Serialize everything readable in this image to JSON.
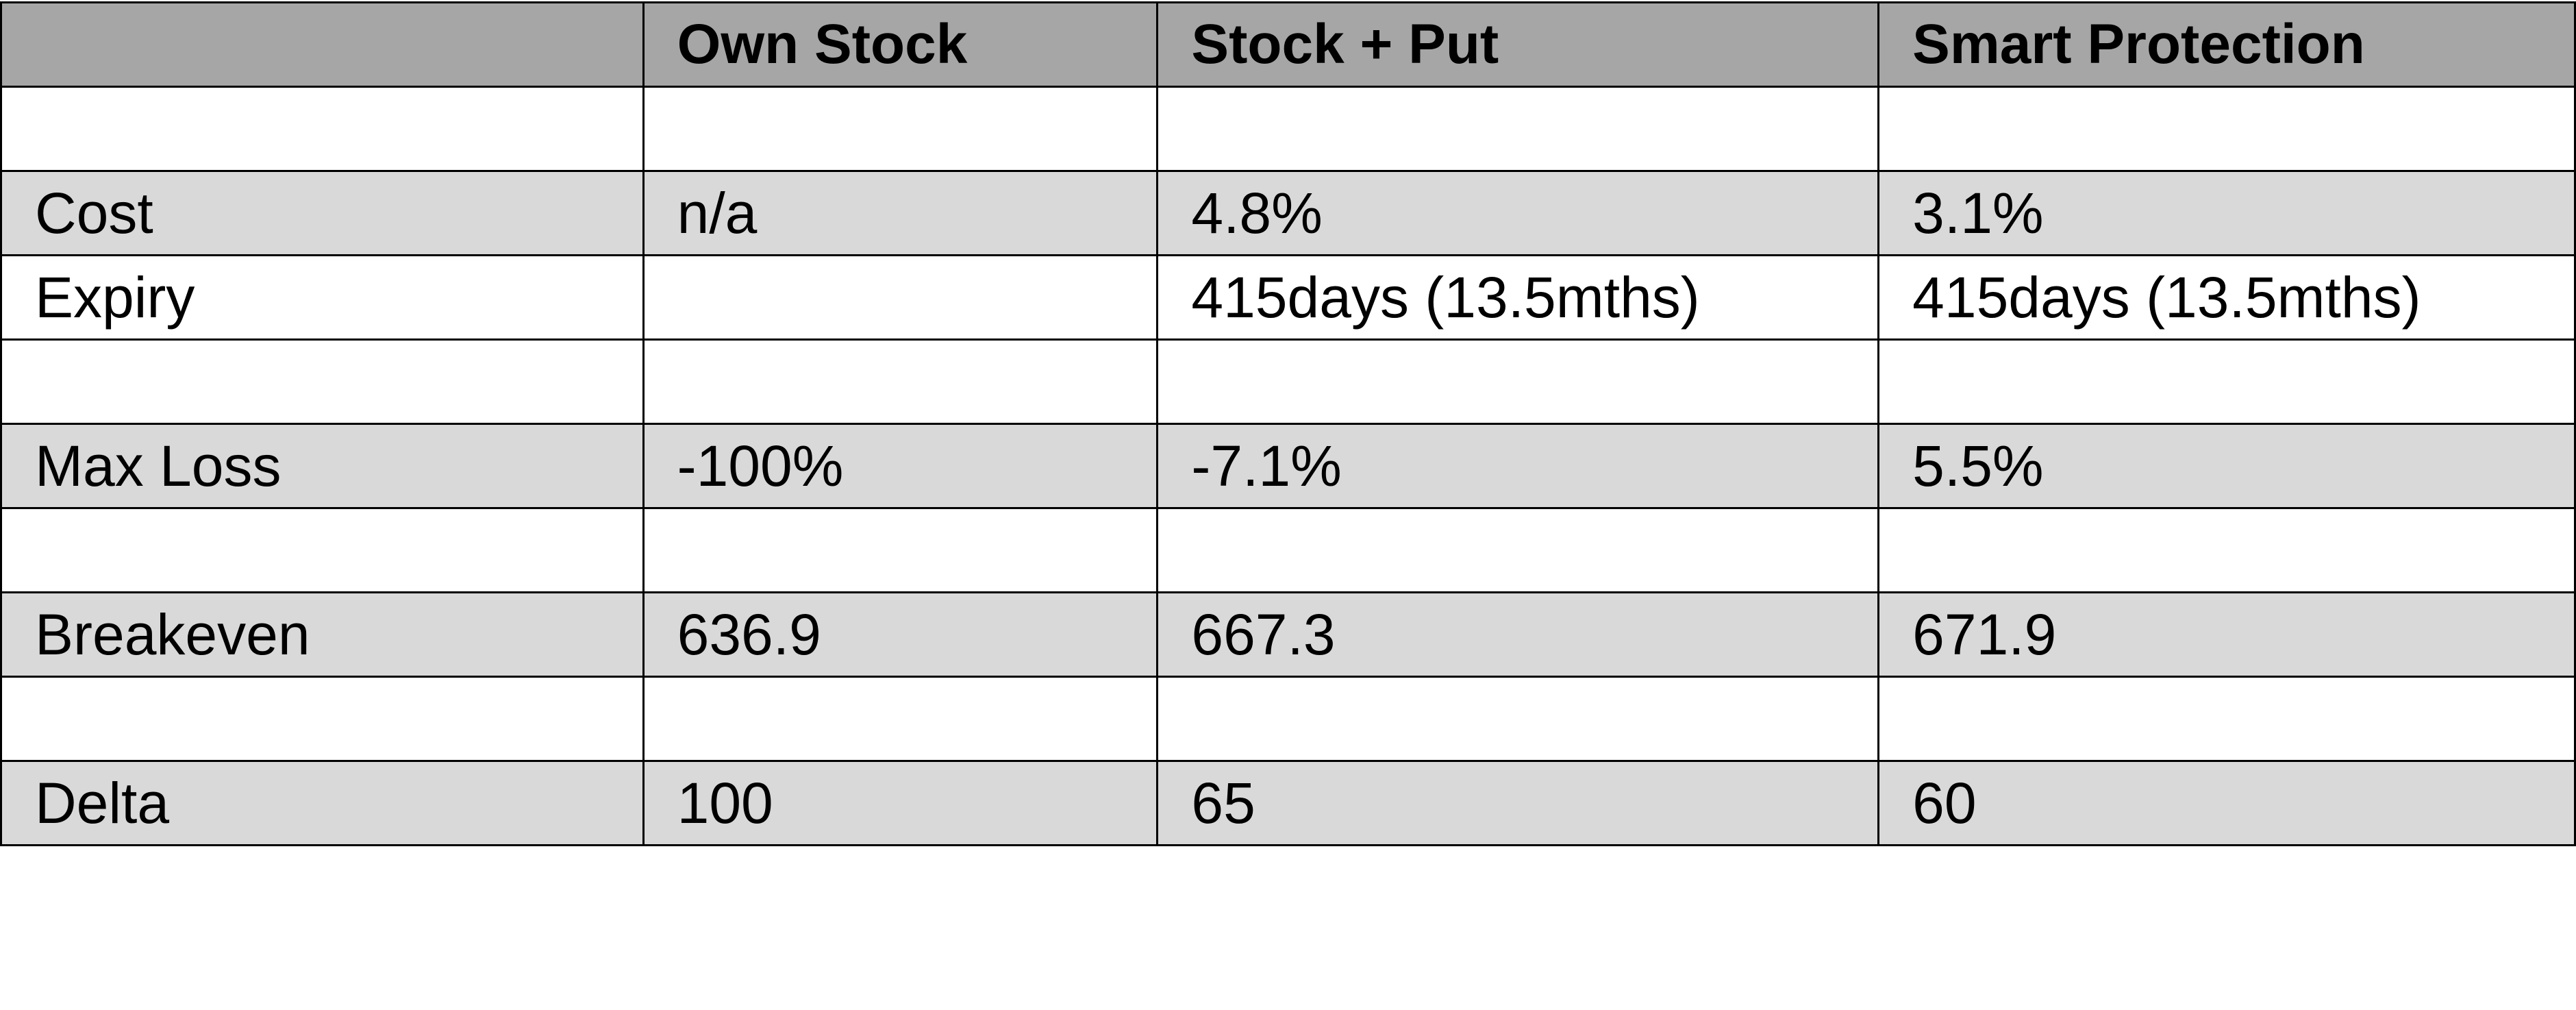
{
  "table": {
    "header": [
      "Own Stock",
      "Stock + Put",
      "Smart Protection"
    ],
    "rows": [
      {
        "label": "Cost",
        "cells": [
          "n/a",
          "4.8%",
          "3.1%"
        ]
      },
      {
        "label": "Expiry",
        "cells": [
          null,
          "415days (13.5mths)",
          "415days (13.5mths)"
        ]
      },
      {
        "label": "Max Loss",
        "cells": [
          "-100%",
          "-7.1%",
          "5.5%"
        ]
      },
      {
        "label": "Breakeven",
        "cells": [
          "636.9",
          "667.3",
          "671.9"
        ]
      },
      {
        "label": "Delta",
        "cells": [
          "100",
          "65",
          "60"
        ]
      }
    ]
  }
}
